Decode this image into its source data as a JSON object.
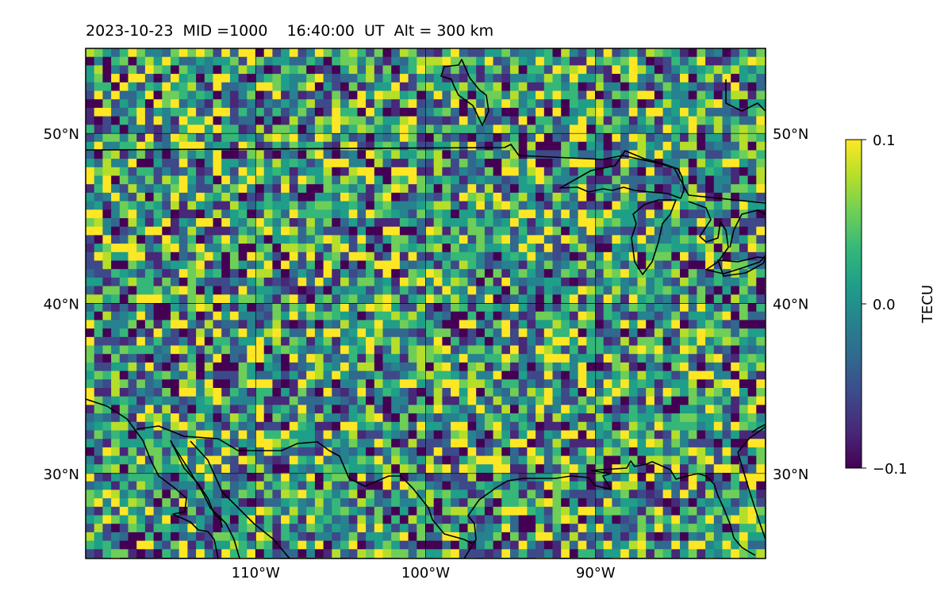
{
  "title": "2023-10-23  MID =1000    16:40:00  UT  Alt = 300 km",
  "map": {
    "lon_range": [
      -120,
      -80
    ],
    "lat_range": [
      25,
      55
    ],
    "lon_ticks": [
      {
        "value": -110,
        "label": "110°W"
      },
      {
        "value": -100,
        "label": "100°W"
      },
      {
        "value": -90,
        "label": "90°W"
      }
    ],
    "lat_ticks": [
      {
        "value": 50,
        "label": "50°N"
      },
      {
        "value": 40,
        "label": "40°N"
      },
      {
        "value": 30,
        "label": "30°N"
      }
    ],
    "grid": true,
    "coastlines": true,
    "field_colormap": "viridis",
    "field_style": "random-noise pixel field"
  },
  "colorbar": {
    "label": "TECU",
    "range": [
      -0.1,
      0.1
    ],
    "ticks": [
      {
        "value": 0.1,
        "label": "0.1"
      },
      {
        "value": 0.0,
        "label": "0.0"
      },
      {
        "value": -0.1,
        "label": "−0.1"
      }
    ],
    "colormap": [
      "#440154",
      "#482878",
      "#3e4989",
      "#31688e",
      "#26828e",
      "#1f9e89",
      "#35b779",
      "#6ece58",
      "#b5de2b",
      "#fde725"
    ]
  }
}
